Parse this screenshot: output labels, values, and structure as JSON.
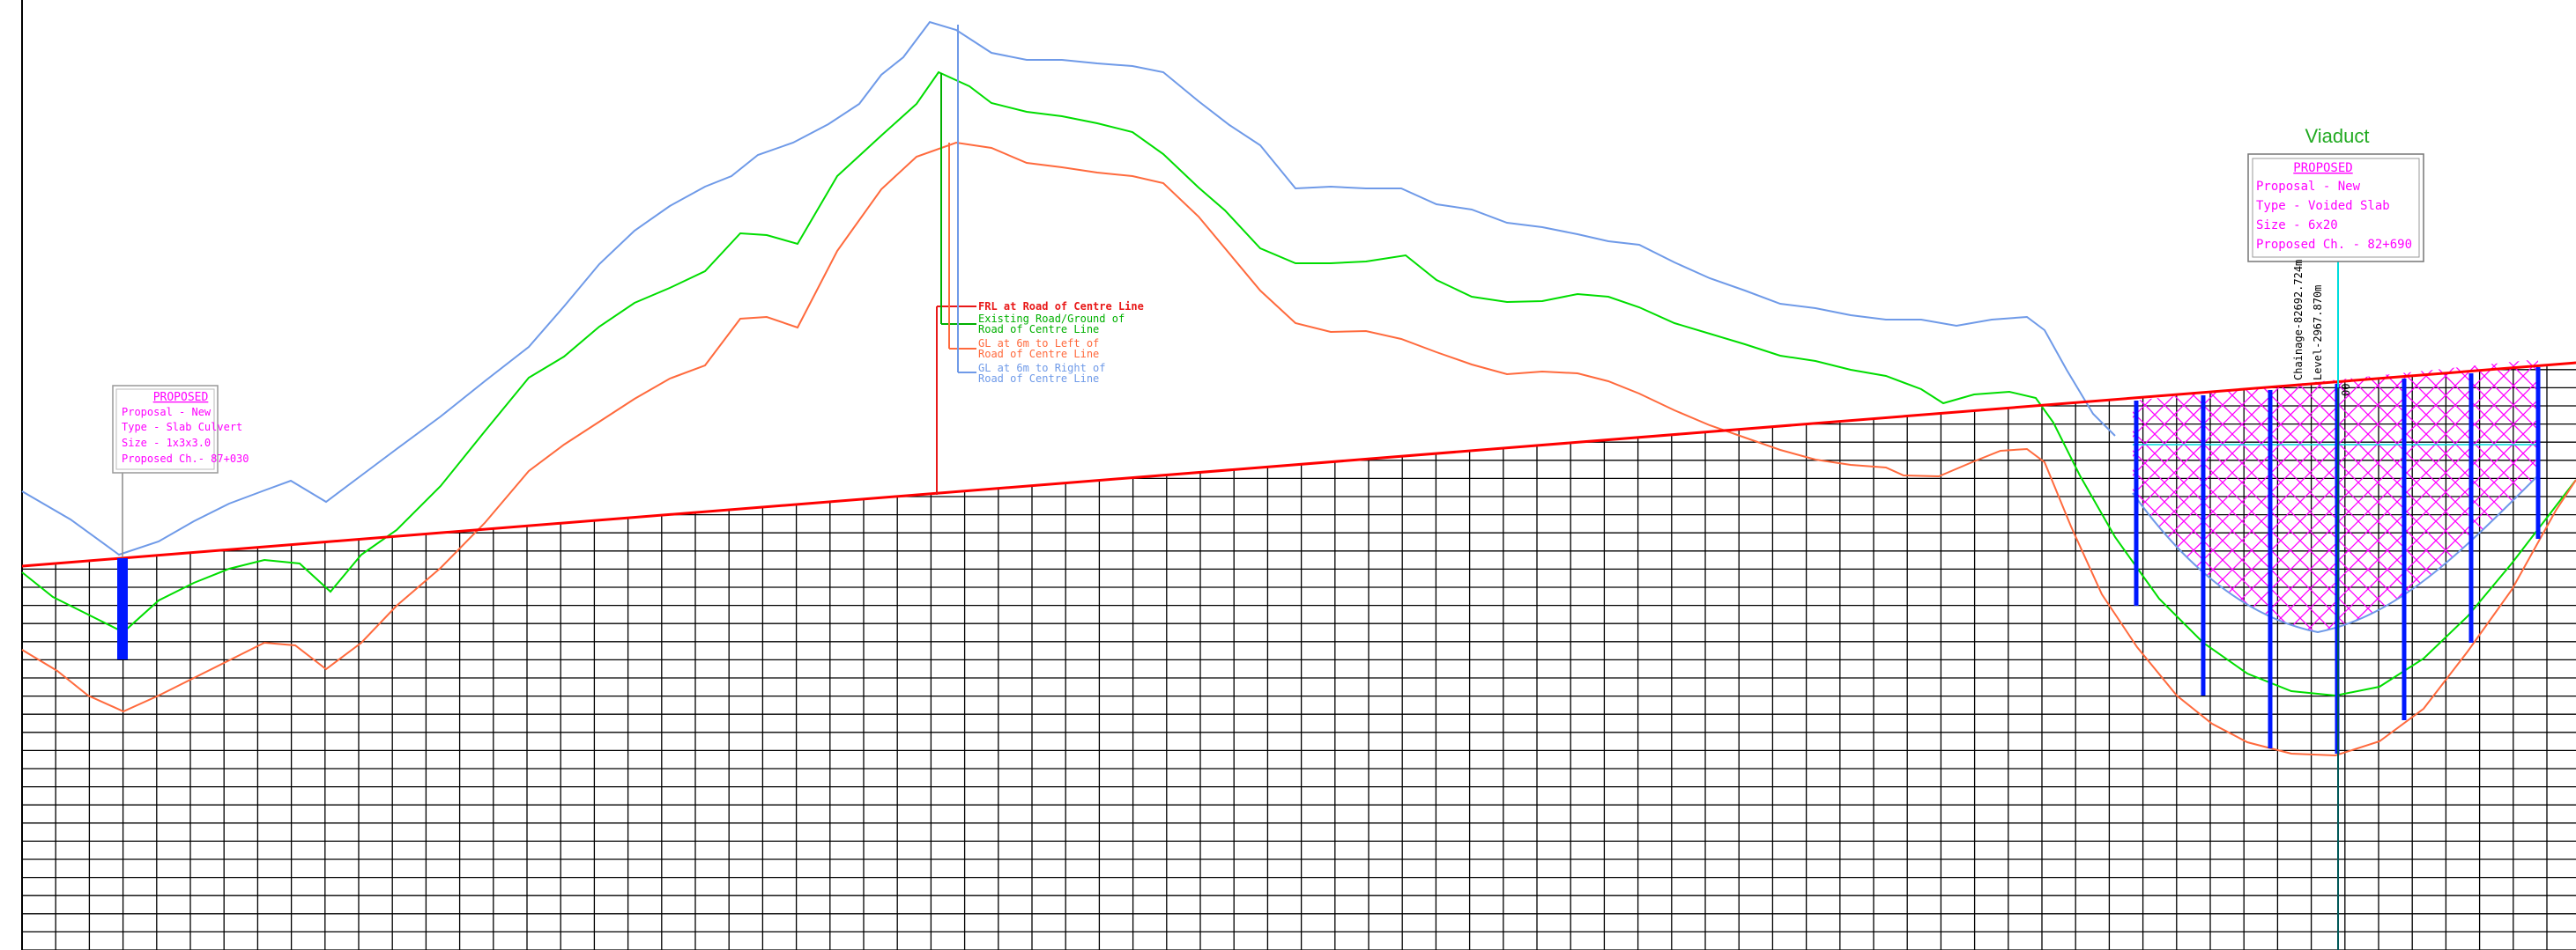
{
  "colors": {
    "frl": "#ff0000",
    "existing_ground": "#00dd00",
    "gl_left": "#ff6a3d",
    "gl_right": "#6f9ae8",
    "structure": "#0018ff",
    "grid": "#000000",
    "annotation_text": "#ff00ff",
    "legend_red": "#e81818",
    "legend_green": "#00b000",
    "legend_orange": "#ff6a3d",
    "legend_blue": "#6f9ae8",
    "viaduct_title": "#22aa22",
    "hatch": "#ff00ff",
    "cyan_marker": "#00dddd"
  },
  "legend": {
    "frl": "FRL at Road of Centre Line",
    "existing_1": "Existing Road/Ground of",
    "existing_2": "Road of Centre Line",
    "left_1": "GL at 6m to Left of",
    "left_2": "Road of Centre Line",
    "right_1": "GL at 6m to Right of",
    "right_2": "Road of Centre Line"
  },
  "culvert_box": {
    "title": "PROPOSED",
    "line1": "Proposal - New",
    "line2": "Type - Slab Culvert",
    "line3": "Size - 1x3x3.0",
    "line4": "Proposed Ch.- 87+030"
  },
  "viaduct": {
    "title": "Viaduct",
    "box_title": "PROPOSED",
    "line1": "Proposal  -  New",
    "line2": "Type  -  Voided  Slab",
    "line3": "Size  -  6x20",
    "line4": "Proposed  Ch.  -  82+690",
    "chainage": "Chainage-82692.724m",
    "level": "Level-2967.870m",
    "marker": "00"
  }
}
